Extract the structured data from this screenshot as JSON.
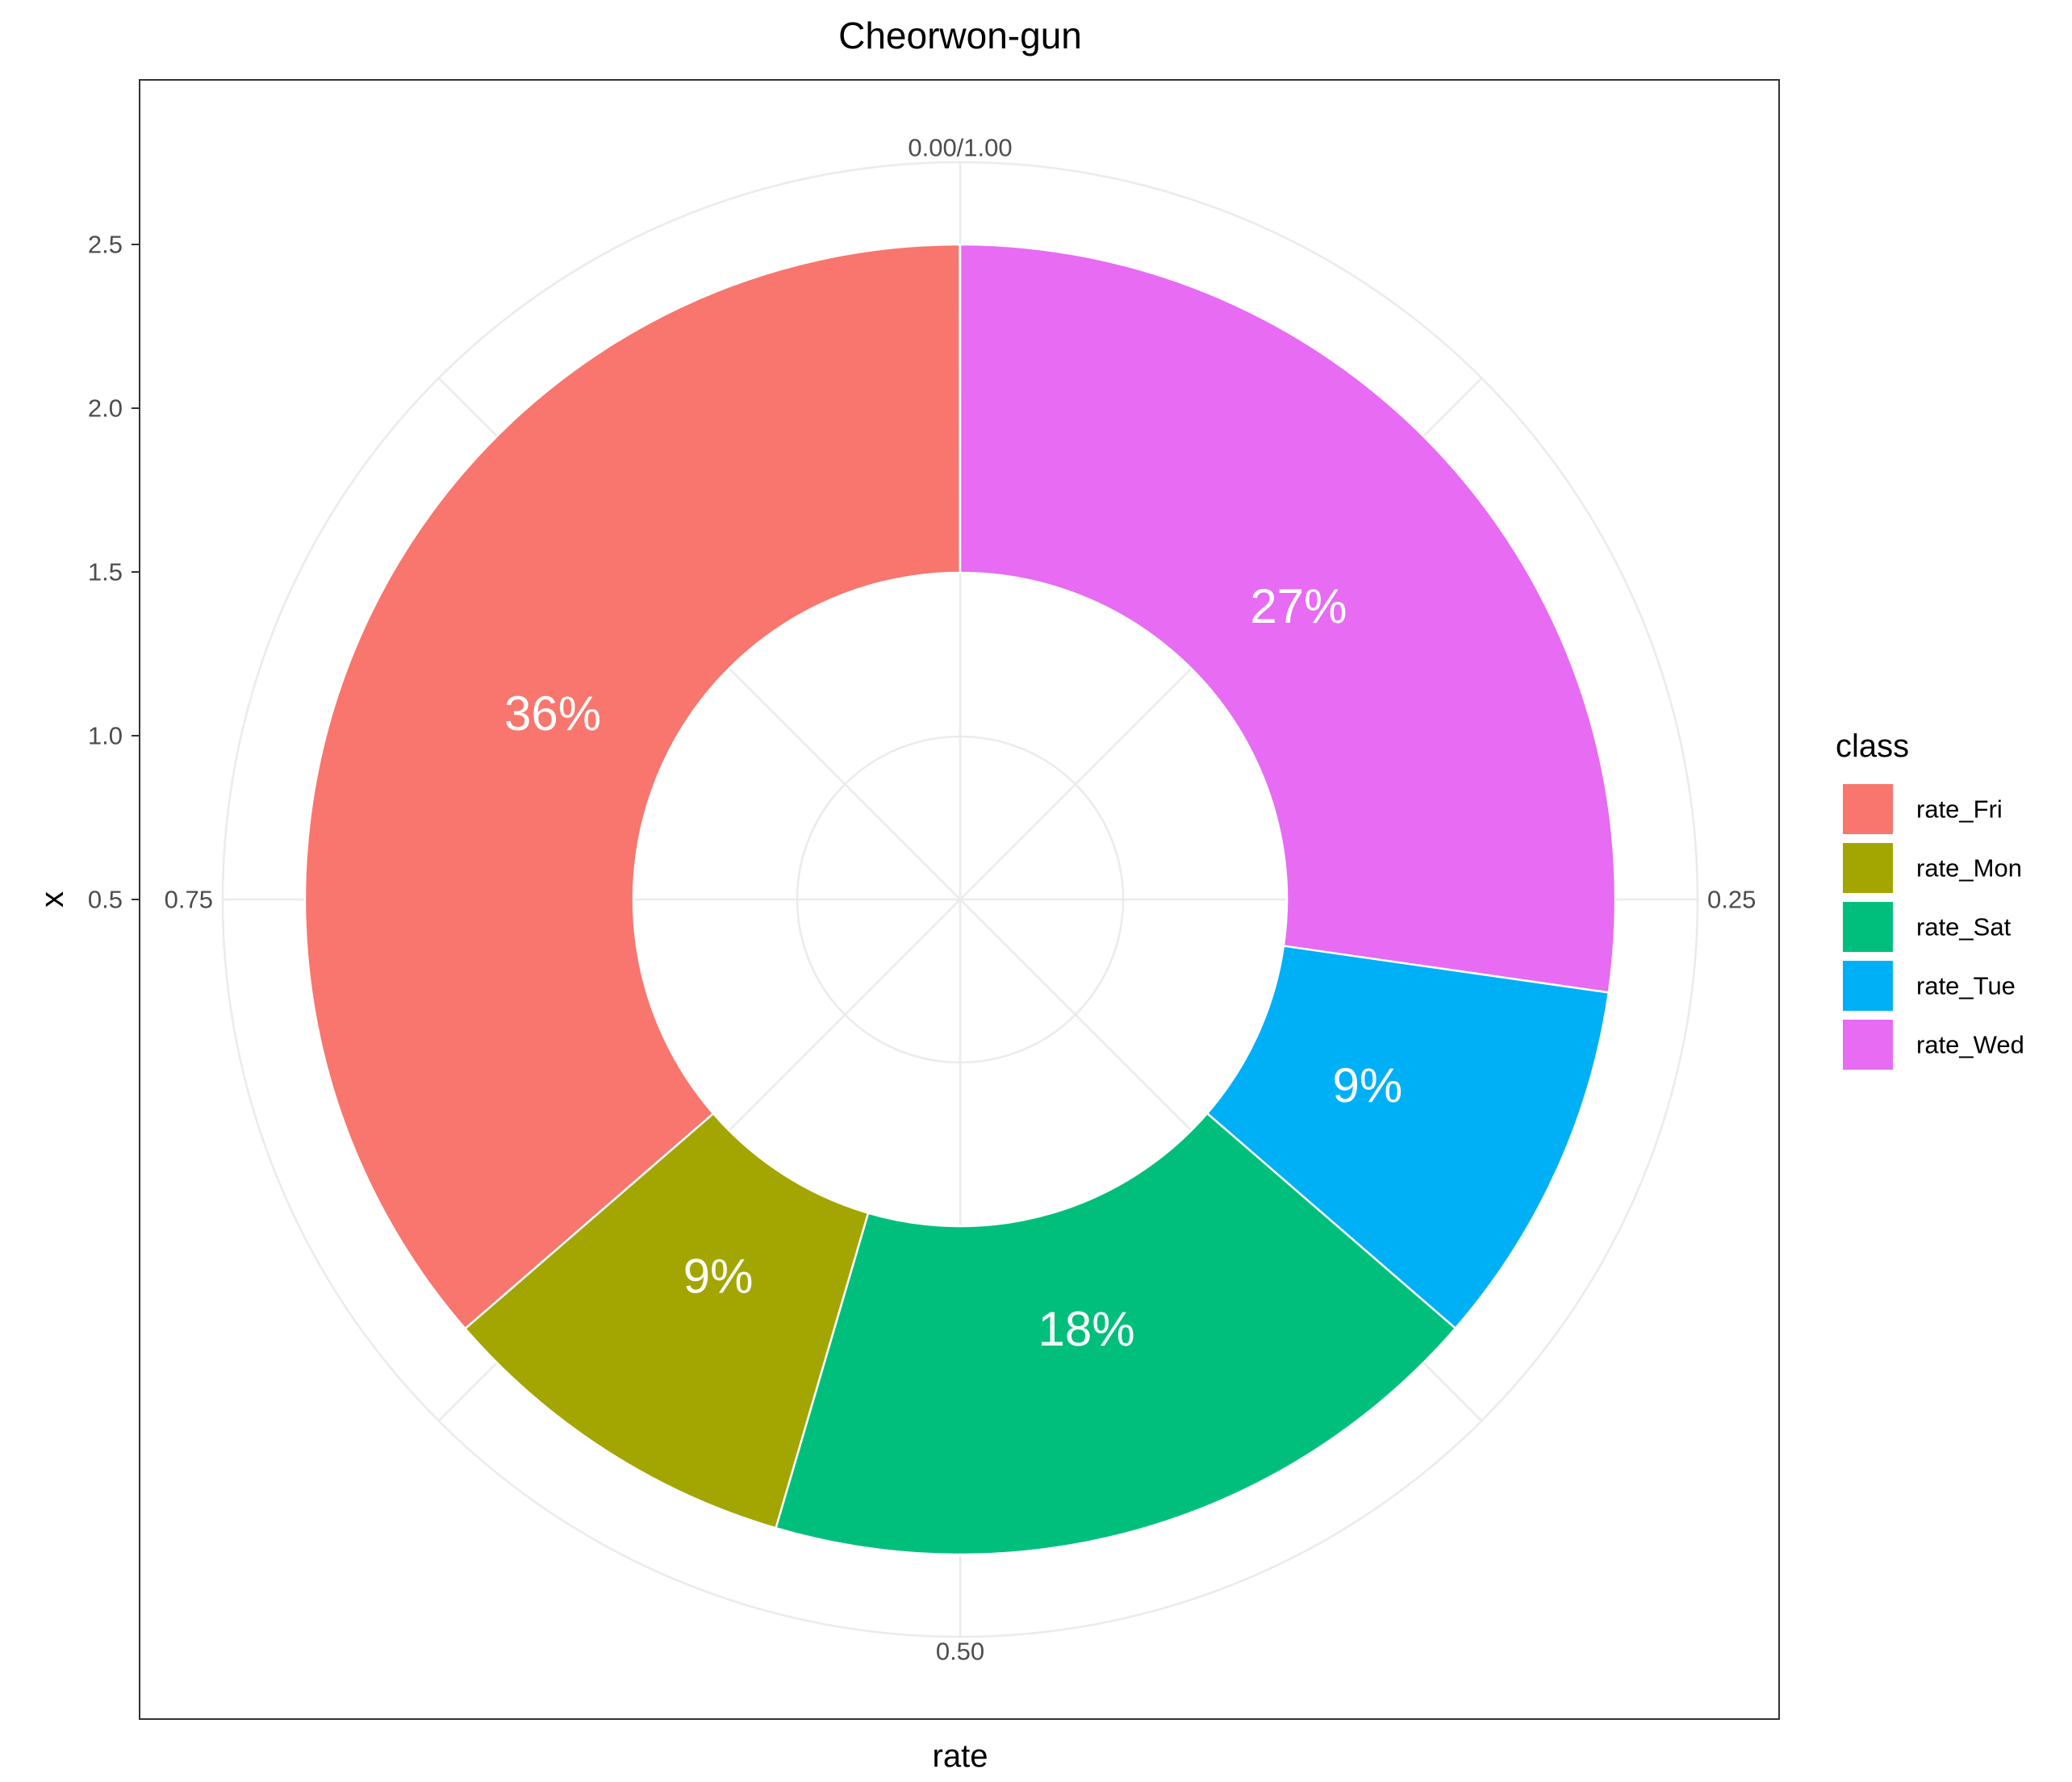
{
  "chart_data": {
    "type": "pie",
    "variant": "donut (polar coordinates)",
    "title": "Cheorwon-gun",
    "xlabel": "rate",
    "ylabel": "x",
    "legend_title": "class",
    "legend_position": "right",
    "grid": true,
    "radial_axis": {
      "ticks": [
        "0.5",
        "1.0",
        "1.5",
        "2.0",
        "2.5"
      ],
      "tick_values": [
        0.5,
        1.0,
        1.5,
        2.0,
        2.5
      ],
      "range": [
        0.5,
        2.5
      ],
      "bar_inner": 1.5,
      "bar_outer": 2.5
    },
    "angular_axis": {
      "ticks": [
        "0.00/1.00",
        "0.25",
        "0.50",
        "0.75"
      ],
      "tick_values": [
        0.0,
        0.25,
        0.5,
        0.75
      ]
    },
    "categories": [
      "rate_Fri",
      "rate_Mon",
      "rate_Sat",
      "rate_Tue",
      "rate_Wed"
    ],
    "values": [
      0.3636,
      0.0909,
      0.1818,
      0.0909,
      0.2727
    ],
    "labels": [
      "36%",
      "9%",
      "18%",
      "9%",
      "27%"
    ],
    "colors": [
      "#F8766D",
      "#A3A500",
      "#00BF7D",
      "#00B0F6",
      "#E76BF3"
    ],
    "stack_order_from_top_clockwise": [
      "rate_Wed",
      "rate_Tue",
      "rate_Sat",
      "rate_Mon",
      "rate_Fri"
    ]
  }
}
